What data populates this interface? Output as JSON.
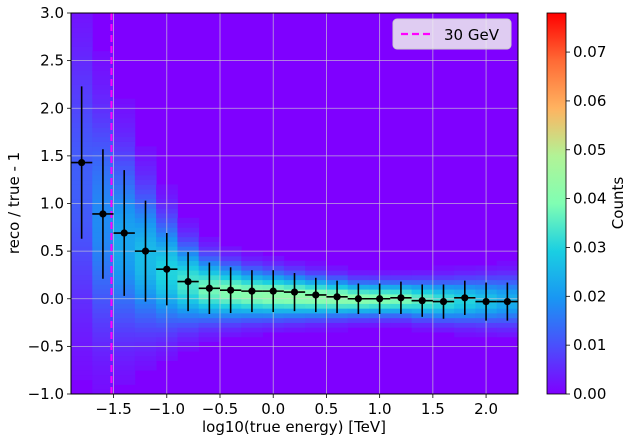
{
  "chart_data": {
    "type": "heatmap",
    "xlabel": "log10(true energy) [TeV]",
    "ylabel": "reco / true - 1",
    "xlim": [
      -1.9,
      2.3
    ],
    "ylim": [
      -1.0,
      3.0
    ],
    "x_ticks": [
      {
        "v": -1.5,
        "label": "−1.5"
      },
      {
        "v": -1.0,
        "label": "−1.0"
      },
      {
        "v": -0.5,
        "label": "−0.5"
      },
      {
        "v": 0.0,
        "label": "0.0"
      },
      {
        "v": 0.5,
        "label": "0.5"
      },
      {
        "v": 1.0,
        "label": "1.0"
      },
      {
        "v": 1.5,
        "label": "1.5"
      },
      {
        "v": 2.0,
        "label": "2.0"
      }
    ],
    "y_ticks": [
      {
        "v": -1.0,
        "label": "−1.0"
      },
      {
        "v": -0.5,
        "label": "−0.5"
      },
      {
        "v": 0.0,
        "label": "0.0"
      },
      {
        "v": 0.5,
        "label": "0.5"
      },
      {
        "v": 1.0,
        "label": "1.0"
      },
      {
        "v": 1.5,
        "label": "1.5"
      },
      {
        "v": 2.0,
        "label": "2.0"
      },
      {
        "v": 2.5,
        "label": "2.5"
      },
      {
        "v": 3.0,
        "label": "3.0"
      }
    ],
    "grid": true,
    "threshold_line": {
      "x": -1.52,
      "label": "30 GeV",
      "color": "#ff00ff",
      "style": "dashed"
    },
    "legend_position": "top-right",
    "colorbar": {
      "label": "Counts",
      "range": [
        0.0,
        0.078
      ],
      "colormap": "rainbow",
      "ticks": [
        {
          "v": 0.0,
          "label": "0.00"
        },
        {
          "v": 0.01,
          "label": "0.01"
        },
        {
          "v": 0.02,
          "label": "0.02"
        },
        {
          "v": 0.03,
          "label": "0.03"
        },
        {
          "v": 0.04,
          "label": "0.04"
        },
        {
          "v": 0.05,
          "label": "0.05"
        },
        {
          "v": 0.06,
          "label": "0.06"
        },
        {
          "v": 0.07,
          "label": "0.07"
        }
      ]
    },
    "points": {
      "x": [
        -1.8,
        -1.6,
        -1.4,
        -1.2,
        -1.0,
        -0.8,
        -0.6,
        -0.4,
        -0.2,
        0.0,
        0.2,
        0.4,
        0.6,
        0.8,
        1.0,
        1.2,
        1.4,
        1.6,
        1.8,
        2.0,
        2.2
      ],
      "y": [
        1.43,
        0.89,
        0.69,
        0.5,
        0.31,
        0.18,
        0.11,
        0.09,
        0.08,
        0.08,
        0.07,
        0.04,
        0.02,
        0.0,
        0.0,
        0.01,
        -0.02,
        -0.03,
        0.01,
        -0.03,
        -0.03
      ],
      "yerr": [
        0.8,
        0.68,
        0.66,
        0.53,
        0.38,
        0.31,
        0.27,
        0.24,
        0.22,
        0.22,
        0.2,
        0.18,
        0.17,
        0.16,
        0.16,
        0.17,
        0.17,
        0.18,
        0.18,
        0.2,
        0.2
      ],
      "xerr": 0.1,
      "color": "#000000"
    },
    "density": {
      "x_edges": [
        -1.9,
        -1.7,
        -1.5,
        -1.3,
        -1.1,
        -0.9,
        -0.7,
        -0.5,
        -0.3,
        -0.1,
        0.1,
        0.3,
        0.5,
        0.7,
        0.9,
        1.1,
        1.3,
        1.5,
        1.7,
        1.9,
        2.1,
        2.3
      ],
      "center": [
        1.2,
        0.8,
        0.6,
        0.42,
        0.27,
        0.16,
        0.1,
        0.07,
        0.05,
        0.04,
        0.03,
        0.02,
        0.01,
        0.0,
        0.0,
        0.0,
        -0.01,
        -0.02,
        -0.02,
        -0.02,
        -0.02
      ],
      "width": [
        1.0,
        0.8,
        0.65,
        0.5,
        0.38,
        0.28,
        0.22,
        0.19,
        0.17,
        0.16,
        0.15,
        0.14,
        0.13,
        0.12,
        0.12,
        0.12,
        0.13,
        0.14,
        0.15,
        0.16,
        0.17
      ],
      "peak": [
        0.012,
        0.018,
        0.022,
        0.026,
        0.03,
        0.034,
        0.038,
        0.04,
        0.041,
        0.042,
        0.042,
        0.042,
        0.042,
        0.041,
        0.04,
        0.039,
        0.036,
        0.033,
        0.03,
        0.027,
        0.024
      ]
    }
  }
}
